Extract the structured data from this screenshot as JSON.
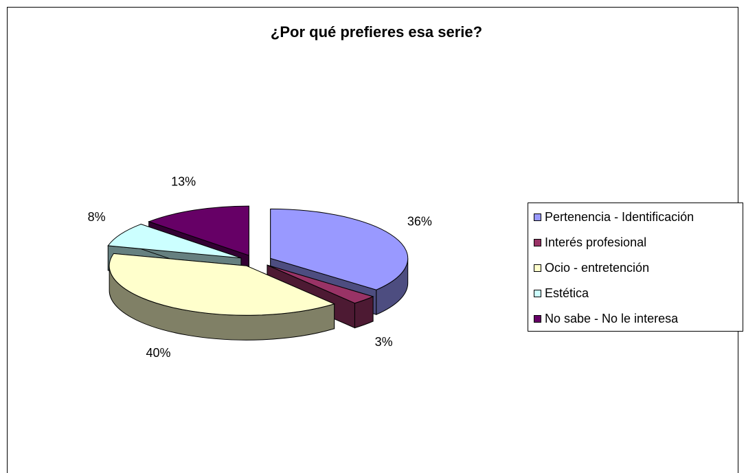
{
  "chart_data": {
    "type": "pie3d",
    "title": "¿Por qué prefieres esa serie?",
    "categories": [
      "Pertenencia - Identificación",
      "Interés profesional",
      "Ocio - entretención",
      "Estética",
      "No sabe - No le interesa"
    ],
    "values": [
      36,
      3,
      40,
      8,
      13
    ],
    "value_labels": [
      "36%",
      "3%",
      "40%",
      "8%",
      "13%"
    ],
    "colors": [
      "#9999ff",
      "#993366",
      "#ffffcc",
      "#ccffff",
      "#660066"
    ],
    "legend": "right"
  }
}
